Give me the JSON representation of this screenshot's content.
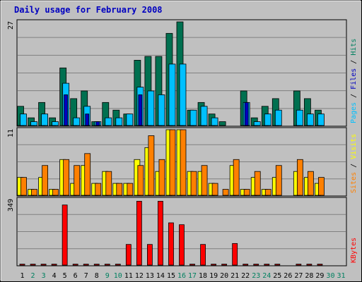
{
  "colors": {
    "background": "#c0c0c0",
    "panel": "#c0c0c0",
    "grid": "#808080",
    "title": "#0000c0",
    "weekday": "#000000",
    "weekend": "#008060",
    "hits": "#007050",
    "files": "#00c0ff",
    "pages": "#0000c0",
    "visits": "#ffff00",
    "sites": "#ff8000",
    "kbytes": "#ff0000"
  },
  "chart_data": {
    "type": "bar",
    "title": "Daily usage for February 2008",
    "categories": [
      "1",
      "2",
      "3",
      "4",
      "5",
      "6",
      "7",
      "8",
      "9",
      "10",
      "11",
      "12",
      "13",
      "14",
      "15",
      "16",
      "17",
      "18",
      "19",
      "20",
      "21",
      "22",
      "23",
      "24",
      "25",
      "26",
      "27",
      "28",
      "29",
      "30",
      "31"
    ],
    "weekend_days": [
      "2",
      "3",
      "9",
      "10",
      "16",
      "17",
      "23",
      "24",
      "30",
      "31"
    ],
    "panels": [
      {
        "id": "hits",
        "y_max_label": "27",
        "ylim": [
          0,
          27
        ],
        "side_labels": [
          {
            "text": "Pages",
            "color": "#00c0ff"
          },
          {
            "text": " / ",
            "color": "#000000"
          },
          {
            "text": "Files",
            "color": "#0000c0"
          },
          {
            "text": " / ",
            "color": "#000000"
          },
          {
            "text": "Hits",
            "color": "#008060"
          }
        ],
        "series": [
          {
            "name": "Hits",
            "color": "#007050",
            "values": [
              5,
              2,
              6,
              2,
              15,
              7,
              9,
              1,
              6,
              4,
              3,
              17,
              18,
              18,
              24,
              27,
              4,
              6,
              3,
              1,
              0,
              9,
              2,
              5,
              7,
              0,
              9,
              7,
              4,
              0,
              0
            ]
          },
          {
            "name": "Files",
            "color": "#00c0ff",
            "values": [
              3,
              1,
              3,
              1,
              11,
              2,
              5,
              1,
              2,
              2,
              3,
              10,
              9,
              8,
              16,
              16,
              4,
              5,
              2,
              0,
              0,
              6,
              1,
              3,
              4,
              0,
              4,
              3,
              3,
              0,
              0
            ]
          },
          {
            "name": "Pages",
            "color": "#0000c0",
            "values": [
              0,
              0,
              0,
              0,
              8,
              0,
              3,
              1,
              0,
              0,
              0,
              8,
              0,
              0,
              0,
              0,
              0,
              0,
              0,
              0,
              0,
              6,
              0,
              0,
              0,
              0,
              0,
              0,
              0,
              0,
              0
            ]
          }
        ]
      },
      {
        "id": "visits",
        "y_max_label": "11",
        "ylim": [
          0,
          11
        ],
        "side_labels": [
          {
            "text": "Sites",
            "color": "#ff8000"
          },
          {
            "text": " / ",
            "color": "#000000"
          },
          {
            "text": "Visits",
            "color": "#ffff00"
          }
        ],
        "series": [
          {
            "name": "Visits",
            "color": "#ffff00",
            "values": [
              3,
              1,
              3,
              1,
              6,
              2,
              5,
              2,
              4,
              2,
              2,
              6,
              8,
              4,
              11,
              11,
              4,
              4,
              2,
              0,
              5,
              1,
              3,
              1,
              3,
              0,
              4,
              3,
              2,
              0,
              0
            ]
          },
          {
            "name": "Sites",
            "color": "#ff8000",
            "values": [
              3,
              1,
              5,
              1,
              6,
              5,
              7,
              2,
              4,
              2,
              2,
              5,
              10,
              6,
              11,
              11,
              4,
              5,
              2,
              1,
              6,
              1,
              4,
              1,
              5,
              0,
              6,
              4,
              3,
              0,
              0
            ]
          }
        ]
      },
      {
        "id": "kbytes",
        "y_max_label": "349",
        "ylim": [
          0,
          349
        ],
        "side_labels": [
          {
            "text": "KBytes",
            "color": "#ff0000"
          }
        ],
        "series": [
          {
            "name": "KBytes",
            "color": "#ff0000",
            "values": [
              5,
              5,
              5,
              5,
              320,
              5,
              5,
              5,
              5,
              5,
              110,
              340,
              110,
              340,
              225,
              215,
              5,
              110,
              5,
              5,
              115,
              5,
              5,
              5,
              5,
              0,
              5,
              5,
              5,
              0,
              0
            ]
          }
        ]
      }
    ]
  }
}
